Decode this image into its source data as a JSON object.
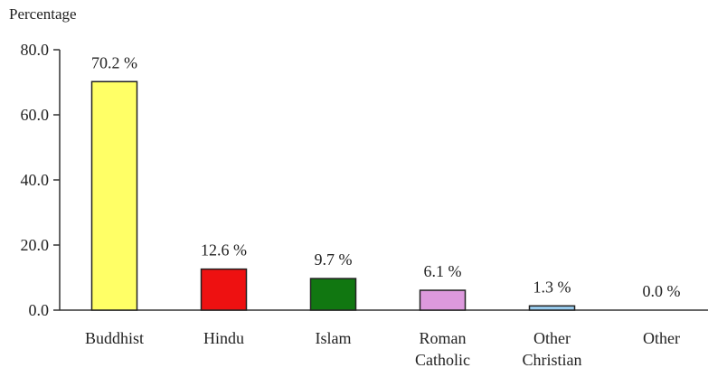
{
  "chart_data": {
    "type": "bar",
    "title": "",
    "xlabel": "",
    "ylabel": "Percentage",
    "ylim": [
      0,
      80
    ],
    "yticks": [
      "0.0",
      "20.0",
      "40.0",
      "60.0",
      "80.0"
    ],
    "grid": false,
    "categories": [
      [
        "Buddhist"
      ],
      [
        "Hindu"
      ],
      [
        "Islam"
      ],
      [
        "Roman",
        "Catholic"
      ],
      [
        "Other",
        "Christian"
      ],
      [
        "Other"
      ]
    ],
    "values": [
      70.2,
      12.6,
      9.7,
      6.1,
      1.3,
      0.0
    ],
    "value_labels": [
      "70.2 %",
      "12.6 %",
      "9.7 %",
      "6.1 %",
      "1.3 %",
      "0.0 %"
    ],
    "colors": [
      "#ffff66",
      "#ee1111",
      "#117711",
      "#dd99dd",
      "#99ccee",
      "#ffffff"
    ]
  }
}
